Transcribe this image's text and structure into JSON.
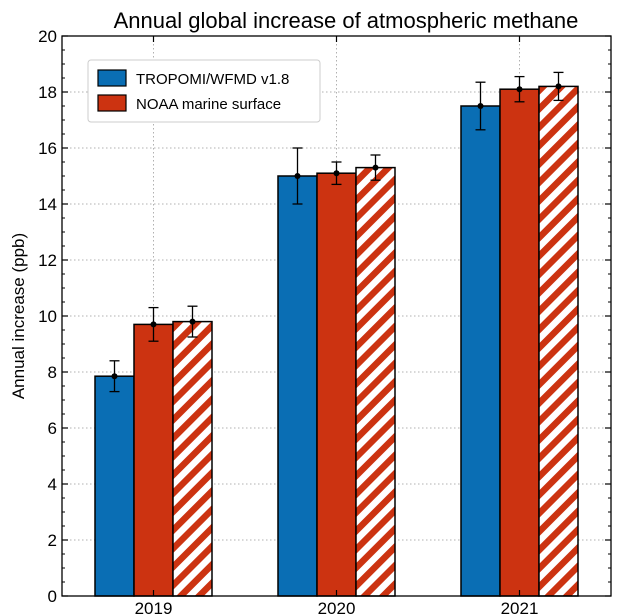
{
  "chart_data": {
    "type": "bar",
    "title": "Annual global increase of atmospheric methane",
    "xlabel": "",
    "ylabel": "Annual increase (ppb)",
    "ylim": [
      0,
      20
    ],
    "yticks": [
      "0",
      "2",
      "4",
      "6",
      "8",
      "10",
      "12",
      "14",
      "16",
      "18",
      "20"
    ],
    "categories": [
      "2019",
      "2020",
      "2021"
    ],
    "grid": true,
    "legend_position": "top-left",
    "series": [
      {
        "name": "TROPOMI/WFMD v1.8",
        "values": [
          7.85,
          15.0,
          17.5
        ],
        "errors": [
          0.55,
          1.0,
          0.85
        ],
        "color": "#0a6eb4",
        "pattern": "solid"
      },
      {
        "name": "NOAA marine surface",
        "values": [
          9.7,
          15.1,
          18.1
        ],
        "errors": [
          0.6,
          0.4,
          0.45
        ],
        "color": "#cc3311",
        "pattern": "solid"
      },
      {
        "name": "",
        "values": [
          9.8,
          15.3,
          18.2
        ],
        "errors": [
          0.55,
          0.45,
          0.5
        ],
        "color": "#cc3311",
        "pattern": "hatched"
      }
    ]
  }
}
